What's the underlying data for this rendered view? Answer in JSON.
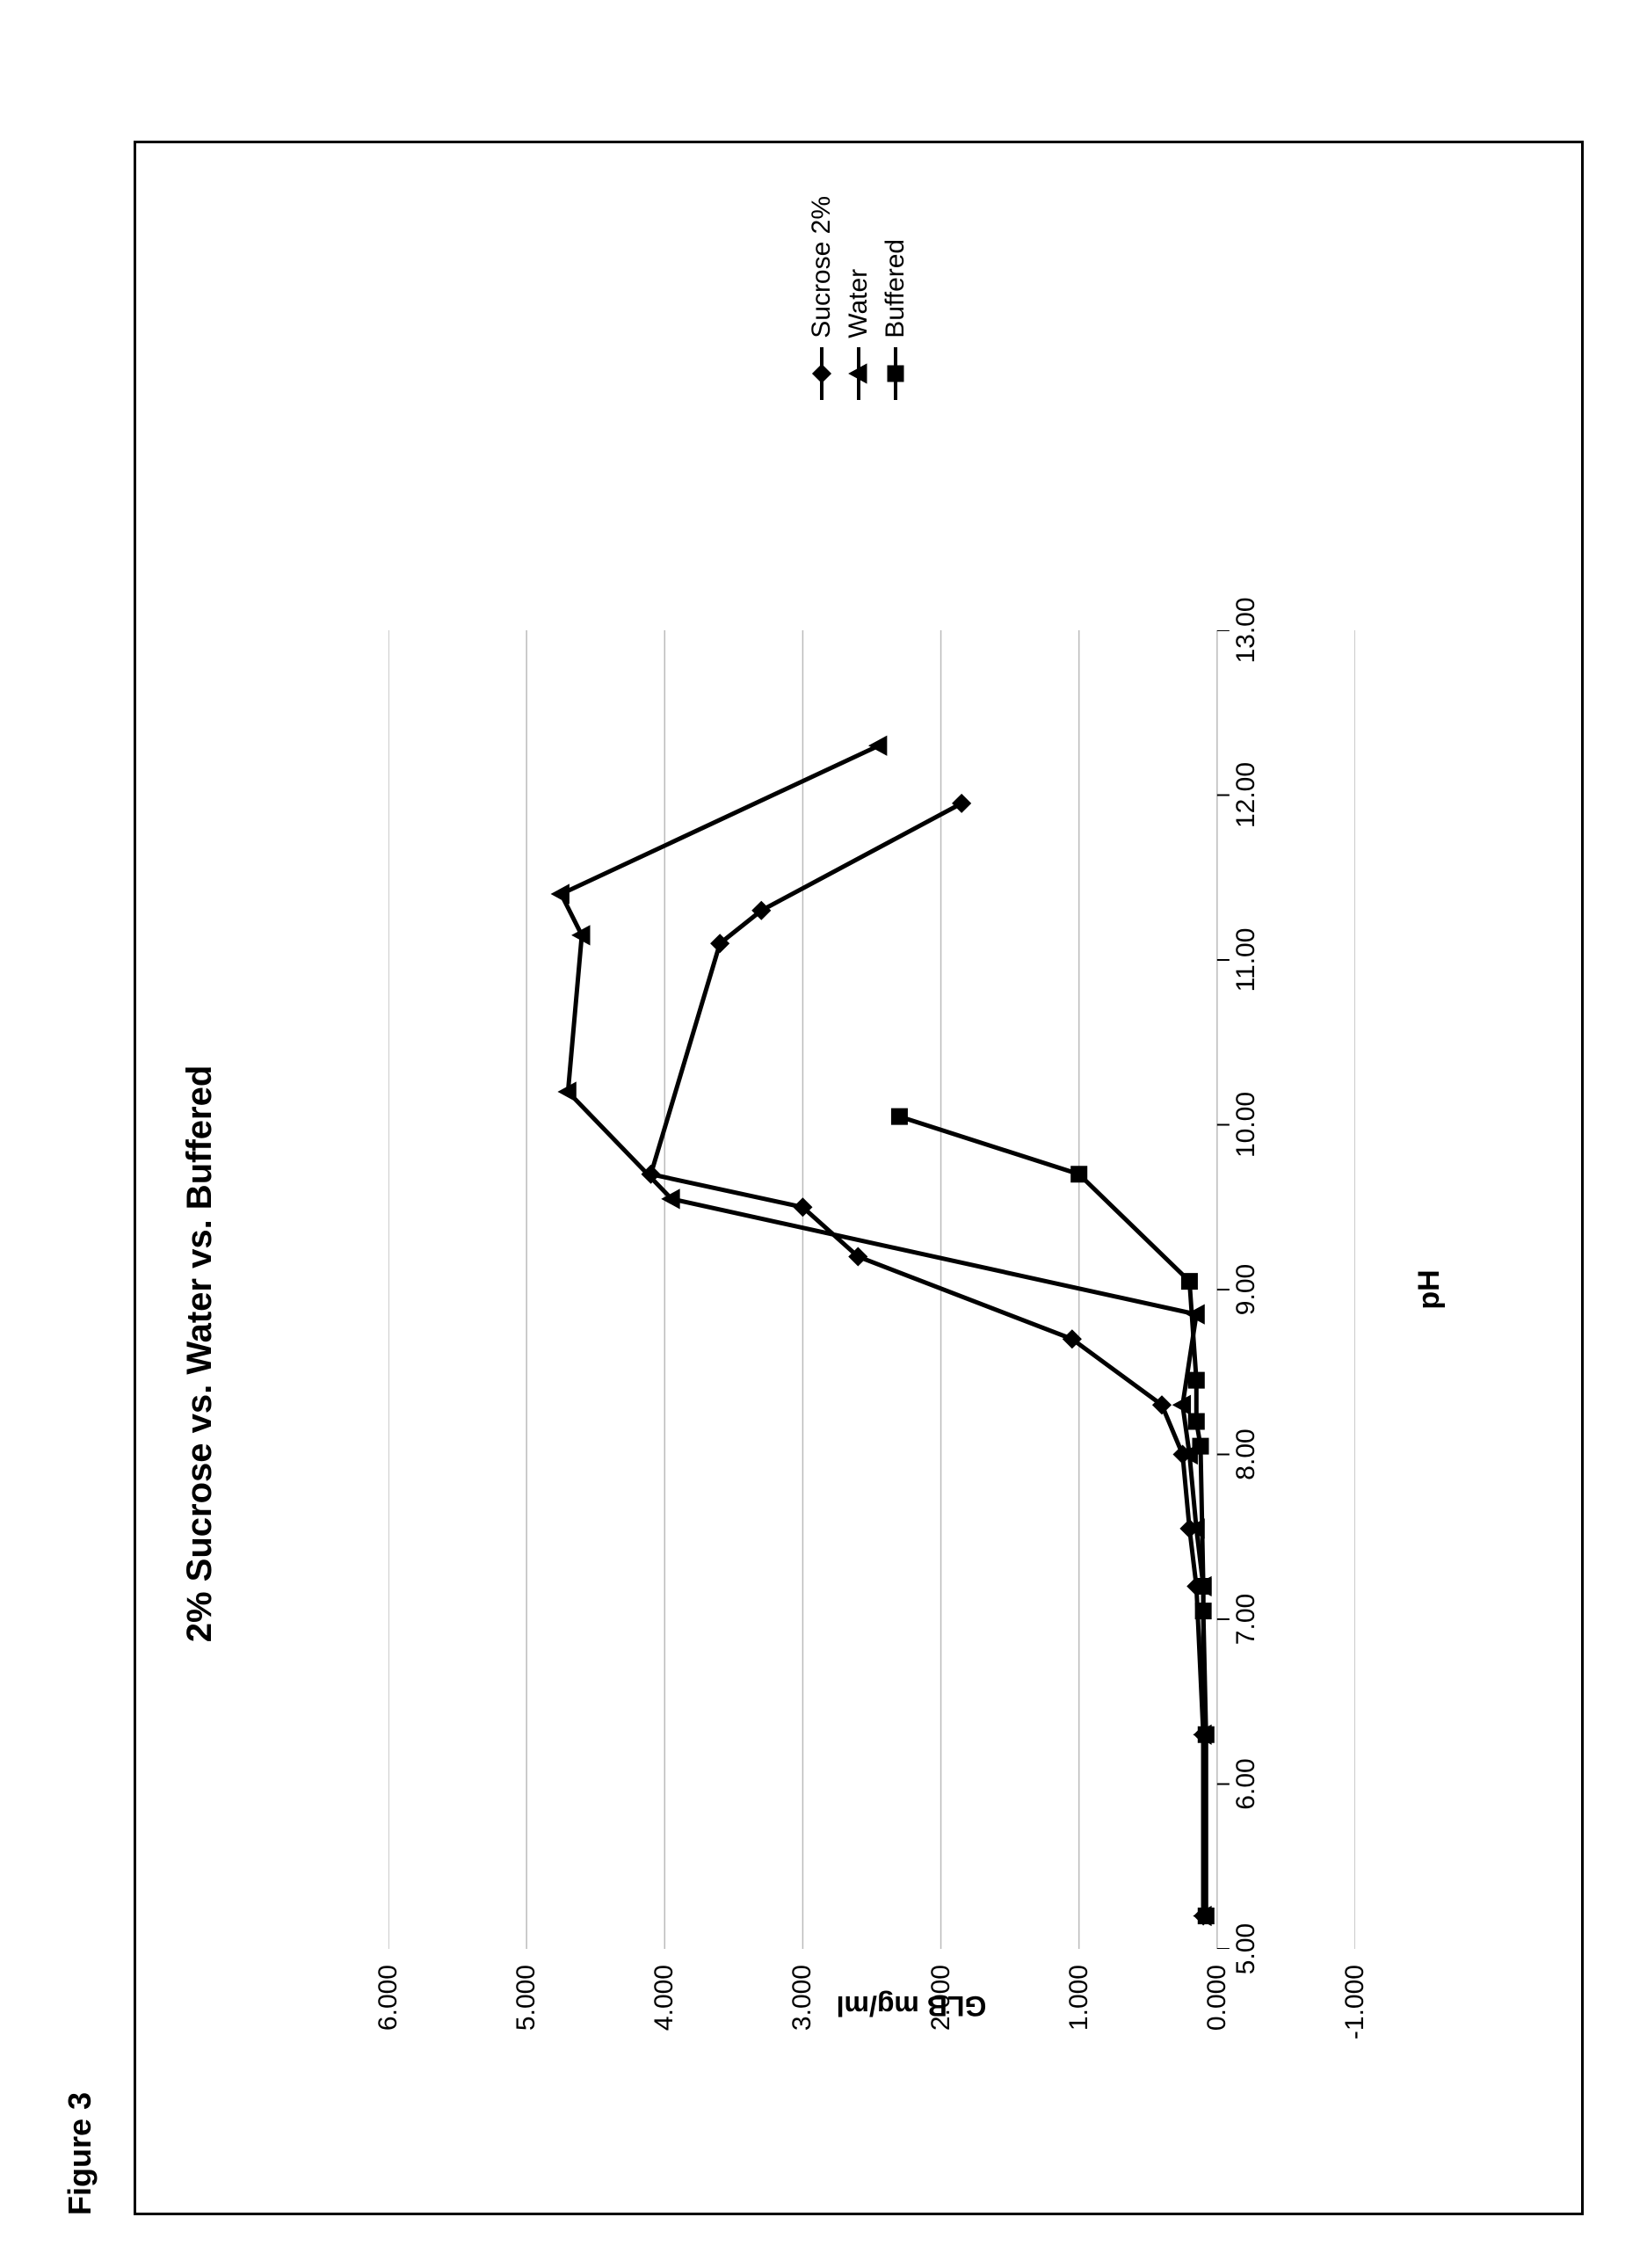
{
  "figure_label": "Figure 3",
  "chart": {
    "type": "line",
    "title": "2% Sucrose vs. Water vs. Buffered",
    "xlabel": "pH",
    "ylabel": "GLB mg/ml",
    "title_fontsize": 40,
    "label_fontsize": 32,
    "tick_fontsize": 30,
    "xlim": [
      5.0,
      13.0
    ],
    "ylim": [
      -1.0,
      6.0
    ],
    "xtick_step": 1.0,
    "ytick_step": 1.0,
    "xtick_format": "0.00",
    "ytick_format": "0.000",
    "grid_color": "#bbbbbb",
    "background_color": "#ffffff",
    "line_color": "#000000",
    "line_width": 5,
    "marker_fill": "#000000",
    "marker_size": 18,
    "gridlines_y": [
      6.0,
      5.0,
      4.0,
      3.0,
      2.0,
      1.0,
      0.0,
      -1.0
    ],
    "series": [
      {
        "name": "Sucrose 2%",
        "marker": "diamond",
        "x": [
          5.2,
          6.3,
          7.2,
          7.55,
          8.0,
          8.3,
          8.7,
          9.2,
          9.5,
          9.7,
          11.1,
          11.3,
          11.95
        ],
        "y": [
          0.1,
          0.1,
          0.15,
          0.2,
          0.25,
          0.4,
          1.05,
          2.6,
          3.0,
          4.1,
          3.6,
          3.3,
          1.85
        ]
      },
      {
        "name": "Water",
        "marker": "triangle",
        "x": [
          5.2,
          6.3,
          7.2,
          7.55,
          8.0,
          8.3,
          8.85,
          9.55,
          10.2,
          11.15,
          11.4,
          12.3
        ],
        "y": [
          0.1,
          0.1,
          0.1,
          0.15,
          0.2,
          0.25,
          0.15,
          3.95,
          4.7,
          4.6,
          4.75,
          2.45
        ]
      },
      {
        "name": "Buffered",
        "marker": "square",
        "x": [
          5.2,
          6.3,
          7.05,
          7.2,
          8.05,
          8.2,
          8.45,
          9.05,
          9.7,
          10.05
        ],
        "y": [
          0.08,
          0.08,
          0.1,
          0.1,
          0.12,
          0.15,
          0.15,
          0.2,
          1.0,
          2.3
        ]
      }
    ],
    "legend_position": "right"
  }
}
